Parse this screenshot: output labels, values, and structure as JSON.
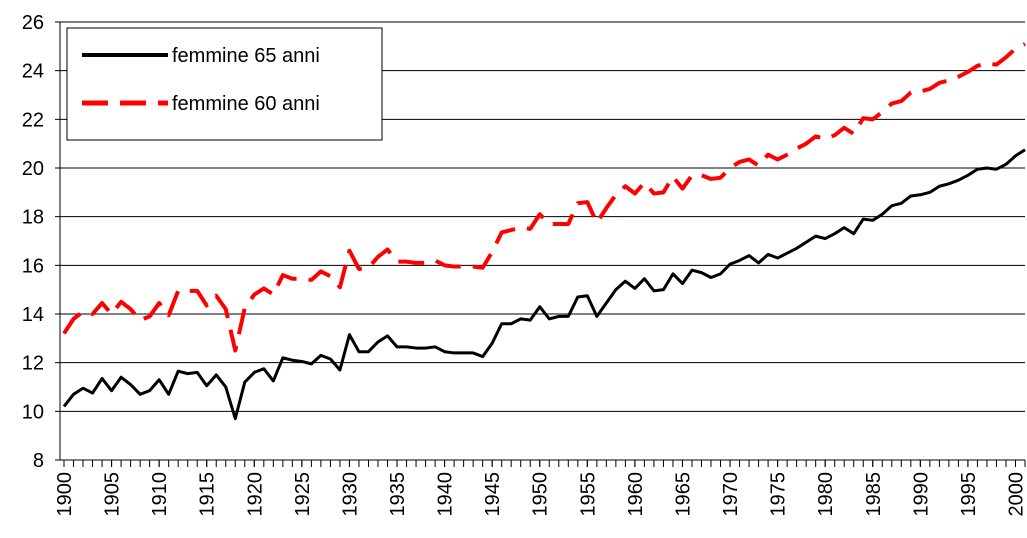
{
  "chart_data": {
    "type": "line",
    "x": [
      1900,
      1901,
      1902,
      1903,
      1904,
      1905,
      1906,
      1907,
      1908,
      1909,
      1910,
      1911,
      1912,
      1913,
      1914,
      1915,
      1916,
      1917,
      1918,
      1919,
      1920,
      1921,
      1922,
      1923,
      1924,
      1925,
      1926,
      1927,
      1928,
      1929,
      1930,
      1931,
      1932,
      1933,
      1934,
      1935,
      1936,
      1937,
      1938,
      1939,
      1940,
      1941,
      1942,
      1943,
      1944,
      1945,
      1946,
      1947,
      1948,
      1949,
      1950,
      1951,
      1952,
      1953,
      1954,
      1955,
      1956,
      1957,
      1958,
      1959,
      1960,
      1961,
      1962,
      1963,
      1964,
      1965,
      1966,
      1967,
      1968,
      1969,
      1970,
      1971,
      1972,
      1973,
      1974,
      1975,
      1976,
      1977,
      1978,
      1979,
      1980,
      1981,
      1982,
      1983,
      1984,
      1985,
      1986,
      1987,
      1988,
      1989,
      1990,
      1991,
      1992,
      1993,
      1994,
      1995,
      1996,
      1997,
      1998,
      1999,
      2000,
      2001
    ],
    "series": [
      {
        "name": "femmine 65 anni",
        "color": "#000000",
        "dash": false,
        "values": [
          10.2,
          10.7,
          10.95,
          10.75,
          11.35,
          10.85,
          11.4,
          11.1,
          10.7,
          10.85,
          11.3,
          10.7,
          11.65,
          11.55,
          11.6,
          11.05,
          11.5,
          11.0,
          9.7,
          11.2,
          11.6,
          11.75,
          11.25,
          12.2,
          12.1,
          12.05,
          11.95,
          12.3,
          12.15,
          11.7,
          13.15,
          12.45,
          12.45,
          12.85,
          13.1,
          12.65,
          12.65,
          12.6,
          12.6,
          12.65,
          12.45,
          12.4,
          12.4,
          12.4,
          12.25,
          12.8,
          13.6,
          13.6,
          13.8,
          13.75,
          14.3,
          13.8,
          13.9,
          13.9,
          14.7,
          14.75,
          13.9,
          14.45,
          15.0,
          15.35,
          15.05,
          15.45,
          14.95,
          15.0,
          15.65,
          15.25,
          15.8,
          15.7,
          15.5,
          15.65,
          16.05,
          16.2,
          16.4,
          16.1,
          16.45,
          16.3,
          16.5,
          16.7,
          16.95,
          17.2,
          17.1,
          17.3,
          17.55,
          17.3,
          17.9,
          17.85,
          18.1,
          18.45,
          18.55,
          18.85,
          18.9,
          19.0,
          19.25,
          19.35,
          19.5,
          19.7,
          19.95,
          20.0,
          19.95,
          20.15,
          20.5,
          20.75
        ]
      },
      {
        "name": "femmine 60 anni",
        "color": "#ff0000",
        "dash": true,
        "values": [
          13.2,
          13.8,
          14.1,
          14.0,
          14.45,
          14.0,
          14.5,
          14.2,
          13.75,
          13.9,
          14.45,
          13.95,
          14.95,
          14.95,
          14.95,
          14.35,
          14.75,
          14.2,
          12.5,
          14.25,
          14.8,
          15.05,
          14.8,
          15.6,
          15.45,
          15.45,
          15.4,
          15.75,
          15.55,
          15.1,
          16.6,
          15.85,
          15.9,
          16.35,
          16.65,
          16.15,
          16.15,
          16.1,
          16.1,
          16.2,
          16.0,
          15.95,
          15.95,
          15.95,
          15.9,
          16.55,
          17.35,
          17.45,
          17.55,
          17.5,
          18.1,
          17.7,
          17.7,
          17.7,
          18.55,
          18.6,
          17.75,
          18.35,
          18.9,
          19.25,
          18.95,
          19.4,
          18.95,
          19.0,
          19.65,
          19.15,
          19.7,
          19.7,
          19.55,
          19.6,
          20.0,
          20.25,
          20.35,
          20.1,
          20.55,
          20.35,
          20.55,
          20.8,
          21.0,
          21.3,
          21.2,
          21.35,
          21.65,
          21.4,
          22.05,
          22.0,
          22.3,
          22.65,
          22.75,
          23.1,
          23.15,
          23.25,
          23.5,
          23.6,
          23.75,
          23.95,
          24.2,
          24.3,
          24.25,
          24.55,
          24.9,
          25.1
        ]
      }
    ],
    "xlim": [
      1900,
      2001
    ],
    "xticks": [
      1900,
      1905,
      1910,
      1915,
      1920,
      1925,
      1930,
      1935,
      1940,
      1945,
      1950,
      1955,
      1960,
      1965,
      1970,
      1975,
      1980,
      1985,
      1990,
      1995,
      2000
    ],
    "ylim": [
      8,
      26
    ],
    "yticks": [
      8,
      10,
      12,
      14,
      16,
      18,
      20,
      22,
      24,
      26
    ],
    "grid": true,
    "legend": "upper left"
  }
}
